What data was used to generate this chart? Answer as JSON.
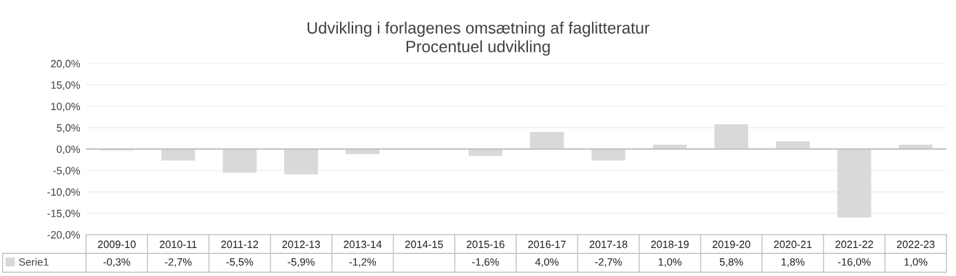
{
  "chart_data": {
    "type": "bar",
    "title": "Udvikling i forlagenes omsætning af faglitteratur\nProcentuel udvikling",
    "categories": [
      "2009-10",
      "2010-11",
      "2011-12",
      "2012-13",
      "2013-14",
      "2014-15",
      "2015-16",
      "2016-17",
      "2017-18",
      "2018-19",
      "2019-20",
      "2020-21",
      "2021-22",
      "2022-23"
    ],
    "series": [
      {
        "name": "Serie1",
        "color": "#d9d9d9",
        "values": [
          -0.3,
          -2.7,
          -5.5,
          -5.9,
          -1.2,
          null,
          -1.6,
          4.0,
          -2.7,
          1.0,
          5.8,
          1.8,
          -16.0,
          1.0
        ],
        "value_labels": [
          "-0,3%",
          "-2,7%",
          "-5,5%",
          "-5,9%",
          "-1,2%",
          null,
          "-1,6%",
          "4,0%",
          "-2,7%",
          "1,0%",
          "5,8%",
          "1,8%",
          "-16,0%",
          "1,0%"
        ]
      }
    ],
    "ylim": [
      -20,
      20
    ],
    "yticks": [
      {
        "value": -20,
        "label": "-20,0%"
      },
      {
        "value": -15,
        "label": "-15,0%"
      },
      {
        "value": -10,
        "label": "-10,0%"
      },
      {
        "value": -5,
        "label": "-5,0%"
      },
      {
        "value": 0,
        "label": "0,0%"
      },
      {
        "value": 5,
        "label": "5,0%"
      },
      {
        "value": 10,
        "label": "10,0%"
      },
      {
        "value": 15,
        "label": "15,0%"
      },
      {
        "value": 20,
        "label": "20,0%"
      }
    ],
    "grid": "y",
    "legend": "bottom left"
  }
}
